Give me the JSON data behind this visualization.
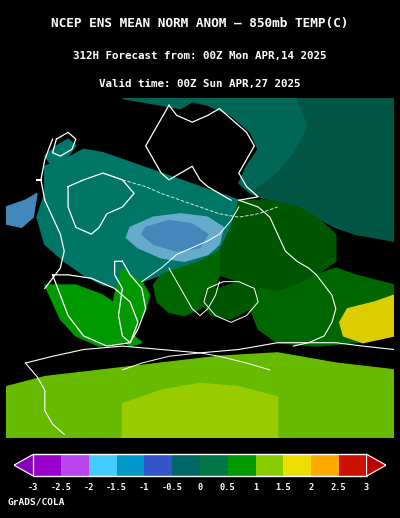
{
  "title_line1": "NCEP ENS MEAN NORM ANOM – 850mb TEMP(C)",
  "title_line2": "312H Forecast from: 00Z Mon APR,14 2025",
  "title_line3": "Valid time: 00Z Sun APR,27 2025",
  "colorbar_label": "GrADS/COLA",
  "colorbar_ticks": [
    "-3",
    "-2.5",
    "-2",
    "-1.5",
    "-1",
    "-0.5",
    "0",
    "0.5",
    "1",
    "1.5",
    "2",
    "2.5",
    "3"
  ],
  "colorbar_values": [
    -3.0,
    -2.5,
    -2.0,
    -1.5,
    -1.0,
    -0.5,
    0.0,
    0.5,
    1.0,
    1.5,
    2.0,
    2.5,
    3.0
  ],
  "cb_colors": [
    "#9900CC",
    "#BB44EE",
    "#44CCFF",
    "#0099CC",
    "#3355CC",
    "#006666",
    "#007744",
    "#009900",
    "#88CC00",
    "#EEDD00",
    "#FFAA00",
    "#EE5500",
    "#CC1100"
  ],
  "background_color": "#000000",
  "text_color": "#ffffff",
  "fig_width": 4.0,
  "fig_height": 5.18,
  "dpi": 100,
  "map_colors": {
    "ocean": "#004455",
    "teal_dark": "#005544",
    "teal_mid": "#006655",
    "teal_light": "#007766",
    "green_dark": "#005500",
    "green_mid": "#006600",
    "green_bright": "#009900",
    "green_light": "#66BB00",
    "green_yellow": "#99CC00",
    "blue_light": "#66AACC",
    "blue_mid": "#4488BB",
    "blue_dark": "#2244AA",
    "yellow": "#DDCC00",
    "orange": "#EE8800"
  }
}
